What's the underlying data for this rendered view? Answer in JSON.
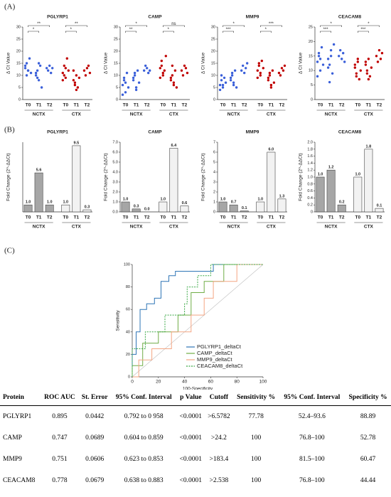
{
  "panels": [
    "(A)",
    "(B)",
    "(C)"
  ],
  "chart_data": [
    {
      "type": "strip",
      "title": "PGLYRP1",
      "y_label": "Δ Ct Value",
      "categories": [
        "T0",
        "T1",
        "T2"
      ],
      "ylim": [
        0,
        30
      ],
      "yticks": [
        0,
        5,
        10,
        15,
        20,
        25,
        30
      ],
      "brackets": [
        "*",
        "**",
        "*",
        "**"
      ],
      "series": [
        {
          "name": "NCTX",
          "color": "#3a5fd9",
          "values": [
            [
              13,
              15,
              12,
              17,
              11,
              14,
              10,
              12
            ],
            [
              10,
              12,
              8,
              14,
              5,
              11,
              9,
              15
            ],
            [
              13,
              12,
              14,
              11,
              13
            ]
          ]
        },
        {
          "name": "CTX",
          "color": "#c00000",
          "values": [
            [
              11,
              14,
              9,
              17,
              12,
              8,
              10,
              13
            ],
            [
              8,
              6,
              10,
              5,
              9,
              12,
              7,
              4
            ],
            [
              12,
              10,
              13,
              14,
              11
            ]
          ]
        }
      ]
    },
    {
      "type": "strip",
      "title": "CAMP",
      "y_label": "Δ Ct Value",
      "categories": [
        "T0",
        "T1",
        "T2"
      ],
      "ylim": [
        0,
        30
      ],
      "yticks": [
        0,
        5,
        10,
        15,
        20,
        25,
        30
      ],
      "brackets": [
        "**",
        "*",
        "*",
        "ns"
      ],
      "series": [
        {
          "name": "NCTX",
          "color": "#3a5fd9",
          "values": [
            [
              6,
              9,
              3,
              11,
              5,
              2,
              8,
              7
            ],
            [
              8,
              10,
              5,
              12,
              7,
              9,
              11,
              4
            ],
            [
              12,
              14,
              13,
              11,
              12
            ]
          ]
        },
        {
          "name": "CTX",
          "color": "#c00000",
          "values": [
            [
              13,
              16,
              10,
              12,
              18,
              9,
              14,
              11
            ],
            [
              8,
              10,
              6,
              12,
              5,
              9,
              14,
              7
            ],
            [
              12,
              10,
              14,
              13,
              11
            ]
          ]
        }
      ]
    },
    {
      "type": "strip",
      "title": "MMP9",
      "y_label": "Δ Ct Value",
      "categories": [
        "T0",
        "T1",
        "T2"
      ],
      "ylim": [
        0,
        30
      ],
      "yticks": [
        0,
        5,
        10,
        15,
        20,
        25,
        30
      ],
      "brackets": [
        "***",
        "*",
        "*",
        "***"
      ],
      "series": [
        {
          "name": "NCTX",
          "color": "#3a5fd9",
          "values": [
            [
              6,
              8,
              5,
              9,
              7,
              4,
              10,
              6
            ],
            [
              8,
              10,
              7,
              12,
              5,
              9,
              11,
              6
            ],
            [
              12,
              14,
              11,
              13,
              15
            ]
          ]
        },
        {
          "name": "CTX",
          "color": "#c00000",
          "values": [
            [
              12,
              14,
              10,
              16,
              13,
              9,
              15,
              11
            ],
            [
              8,
              10,
              6,
              12,
              7,
              9,
              11,
              5
            ],
            [
              11,
              10,
              13,
              12,
              14
            ]
          ]
        }
      ]
    },
    {
      "type": "strip",
      "title": "CEACAM8",
      "y_label": "Δ Ct Value",
      "categories": [
        "T0",
        "T1",
        "T2"
      ],
      "ylim": [
        0,
        25
      ],
      "yticks": [
        0,
        5,
        10,
        15,
        20,
        25
      ],
      "brackets": [
        "***",
        "*",
        "***",
        "*"
      ],
      "series": [
        {
          "name": "NCTX",
          "color": "#3a5fd9",
          "values": [
            [
              13,
              16,
              10,
              18,
              12,
              8,
              15,
              14
            ],
            [
              14,
              12,
              17,
              9,
              19,
              11,
              6,
              15
            ],
            [
              15,
              17,
              14,
              16,
              13
            ]
          ]
        },
        {
          "name": "CTX",
          "color": "#c00000",
          "values": [
            [
              11,
              9,
              13,
              7,
              10,
              12,
              8,
              14
            ],
            [
              12,
              10,
              14,
              8,
              11,
              13,
              9,
              7
            ],
            [
              15,
              13,
              17,
              14,
              16
            ]
          ]
        }
      ]
    },
    {
      "type": "bar",
      "title": "PGLYRP1",
      "y_label": "Fold Change (2^-ΔΔCt)",
      "categories": [
        "T0",
        "T1",
        "T2"
      ],
      "ylim": [
        0,
        10
      ],
      "yticks": [],
      "series": [
        {
          "name": "NCTX",
          "color": "#a6a6a6",
          "values": [
            1,
            5.6,
            1
          ],
          "value_labels": [
            "1.0",
            "5.6",
            "1.0"
          ]
        },
        {
          "name": "CTX",
          "color": "#f2f2f2",
          "values": [
            1,
            9.5,
            0.3
          ],
          "value_labels": [
            "1.0",
            "9.5",
            "0.3"
          ]
        }
      ]
    },
    {
      "type": "bar",
      "title": "CAMP",
      "y_label": "Fold Change (2^-ΔΔCt)",
      "categories": [
        "T0",
        "T1",
        "T2"
      ],
      "ylim": [
        0,
        7
      ],
      "yticks": [
        {
          "value": 0,
          "label": "0.0"
        },
        {
          "value": 1,
          "label": "1.0"
        },
        {
          "value": 2,
          "label": "2.0"
        },
        {
          "value": 3,
          "label": "3.0"
        },
        {
          "value": 4,
          "label": "4.0"
        },
        {
          "value": 5,
          "label": "5.0"
        },
        {
          "value": 6,
          "label": "6.0"
        },
        {
          "value": 7,
          "label": "7.0"
        }
      ],
      "series": [
        {
          "name": "NCTX",
          "color": "#a6a6a6",
          "values": [
            1,
            0.3,
            0
          ],
          "value_labels": [
            "1.0",
            "0.3",
            "0.0"
          ]
        },
        {
          "name": "CTX",
          "color": "#f2f2f2",
          "values": [
            1,
            6.4,
            0.6
          ],
          "value_labels": [
            "1.0",
            "6.4",
            "0.6"
          ]
        }
      ]
    },
    {
      "type": "bar",
      "title": "MMP9",
      "y_label": "Fold Change (2^-ΔΔCt)",
      "categories": [
        "T0",
        "T1",
        "T2"
      ],
      "ylim": [
        0,
        7
      ],
      "yticks": [
        0,
        1,
        2,
        3,
        4,
        5,
        6,
        7
      ],
      "series": [
        {
          "name": "NCTX",
          "color": "#a6a6a6",
          "values": [
            1,
            0.7,
            0.1
          ],
          "value_labels": [
            "1.0",
            "0.7",
            "0.1"
          ]
        },
        {
          "name": "CTX",
          "color": "#f2f2f2",
          "values": [
            1,
            6,
            1.3
          ],
          "value_labels": [
            "1.0",
            "6.0",
            "1.3"
          ]
        }
      ]
    },
    {
      "type": "bar",
      "title": "CEACAM8",
      "y_label": "Fold Change (2^-ΔΔCt)",
      "categories": [
        "T0",
        "T1",
        "T2"
      ],
      "ylim": [
        0,
        2
      ],
      "yticks": [
        0,
        0.2,
        0.4,
        0.6,
        0.8,
        {
          "value": 1,
          "label": "1.0"
        },
        1.2,
        1.4,
        1.6,
        1.8,
        {
          "value": 2,
          "label": "2.0"
        }
      ],
      "series": [
        {
          "name": "NCTX",
          "color": "#a6a6a6",
          "values": [
            1,
            1.2,
            0.2
          ],
          "value_labels": [
            "1.0",
            "1.2",
            "0.2"
          ]
        },
        {
          "name": "CTX",
          "color": "#f2f2f2",
          "values": [
            1,
            1.8,
            0.1
          ],
          "value_labels": [
            "1.0",
            "1.8",
            "0.1"
          ]
        }
      ]
    },
    {
      "type": "line",
      "x_label": "100-Specificity",
      "y_label": "Sensitivity",
      "xlim": [
        0,
        100
      ],
      "ylim": [
        0,
        100
      ],
      "xticks": [
        0,
        20,
        40,
        60,
        80,
        100
      ],
      "yticks": [
        0,
        20,
        40,
        60,
        80,
        100
      ],
      "legend": "lower right",
      "series": [
        {
          "name": "PGLYRP1_deltaCt",
          "color": "#2e75b6",
          "dash": false,
          "x": [
            0,
            0,
            3,
            3,
            6,
            6,
            11,
            11,
            17,
            17,
            22,
            22,
            28,
            28,
            33,
            33,
            62,
            62,
            100
          ],
          "values": [
            0,
            20,
            20,
            40,
            40,
            60,
            60,
            65,
            65,
            70,
            70,
            85,
            85,
            90,
            90,
            94,
            94,
            100,
            100
          ]
        },
        {
          "name": "CAMP_deltaCt",
          "color": "#70ad47",
          "dash": false,
          "x": [
            0,
            0,
            8,
            8,
            20,
            20,
            35,
            35,
            45,
            45,
            55,
            55,
            70,
            70,
            100
          ],
          "values": [
            0,
            10,
            10,
            30,
            30,
            40,
            40,
            55,
            55,
            75,
            75,
            85,
            85,
            100,
            100
          ]
        },
        {
          "name": "MMP9_deltaCt",
          "color": "#f4a582",
          "dash": false,
          "x": [
            0,
            5,
            5,
            15,
            15,
            30,
            30,
            45,
            45,
            55,
            55,
            62,
            62,
            80,
            80,
            100
          ],
          "values": [
            0,
            0,
            15,
            15,
            25,
            25,
            40,
            40,
            55,
            55,
            70,
            70,
            85,
            85,
            100,
            100
          ]
        },
        {
          "name": "CEACAM8_deltaCt",
          "color": "#3aa845",
          "dash": true,
          "x": [
            0,
            0,
            10,
            10,
            25,
            25,
            40,
            40,
            42,
            42,
            50,
            50,
            60,
            60,
            100
          ],
          "values": [
            0,
            25,
            25,
            40,
            40,
            55,
            55,
            65,
            65,
            80,
            80,
            90,
            90,
            100,
            100
          ]
        }
      ]
    }
  ],
  "table": {
    "header": [
      "Protein",
      "ROC AUC",
      "St. Error",
      "95% Conf. Interval",
      "p Value",
      "Cutoff",
      "Sensitivity %",
      "95% Conf. Interval",
      "Specificity %"
    ],
    "rows": [
      [
        "PGLYRP1",
        "0.895",
        "0.0442",
        "0.792 to 0 958",
        "<0.0001",
        ">6.5782",
        "77.78",
        "52.4–93.6",
        "88.89"
      ],
      [
        "CAMP",
        "0.747",
        "0.0689",
        "0.604 to 0.859",
        "<0.0001",
        ">24.2",
        "100",
        "76.8–100",
        "52.78"
      ],
      [
        "MMP9",
        "0.751",
        "0.0606",
        "0.623 to 0.853",
        "<0.0001",
        ">183.4",
        "100",
        "81.5–100",
        "60.47"
      ],
      [
        "CEACAM8",
        "0.778",
        "0.0679",
        "0.638 to 0.883",
        "<0.0001",
        ">2.538",
        "100",
        "76.8–100",
        "44.44"
      ]
    ]
  }
}
